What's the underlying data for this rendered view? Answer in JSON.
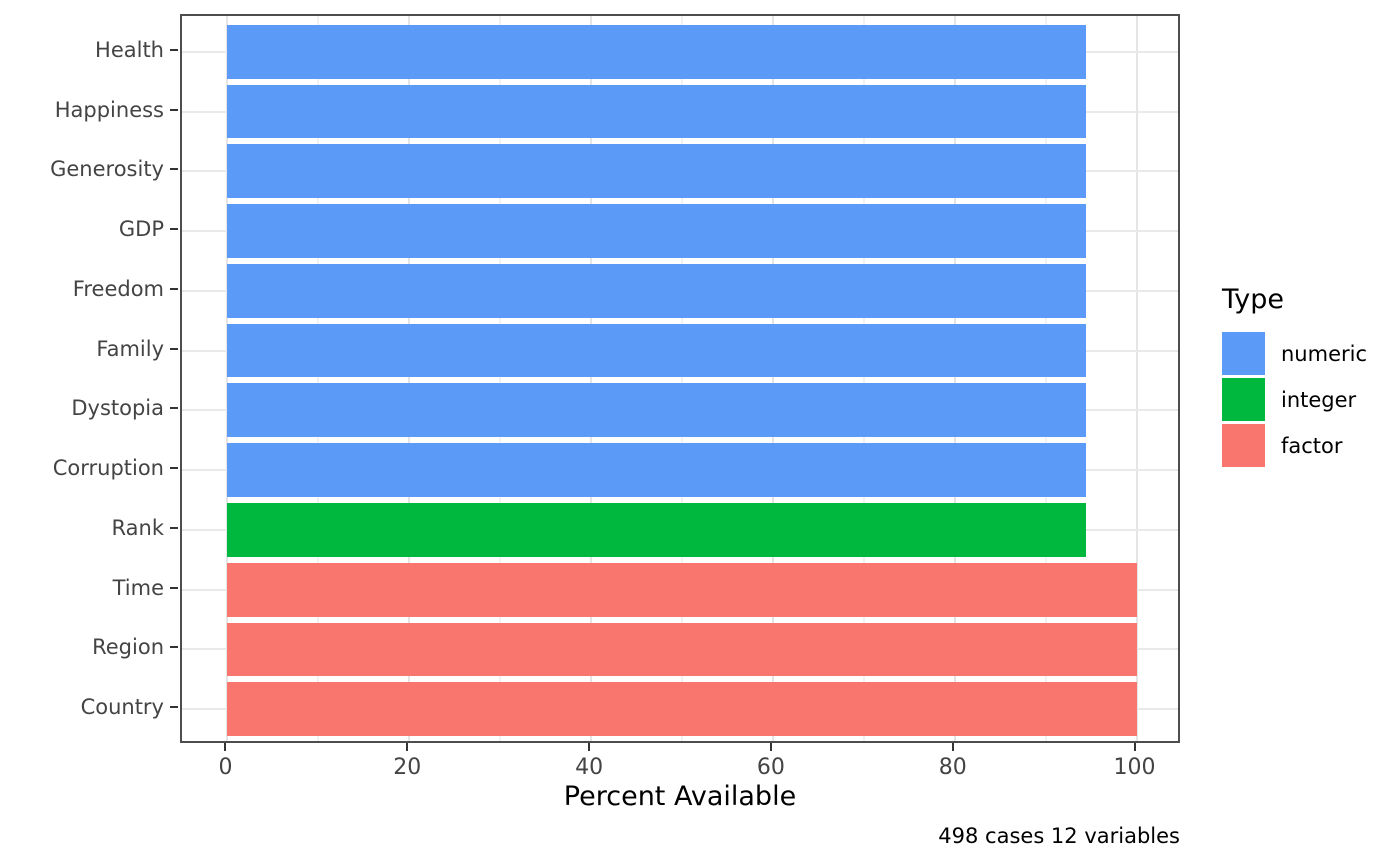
{
  "chart_data": {
    "type": "bar",
    "orientation": "horizontal",
    "title": "",
    "xlabel": "Percent Available",
    "ylabel": "",
    "caption": "498 cases 12 variables",
    "categories": [
      "Health",
      "Happiness",
      "Generosity",
      "GDP",
      "Freedom",
      "Family",
      "Dystopia",
      "Corruption",
      "Rank",
      "Time",
      "Region",
      "Country"
    ],
    "values": [
      94.4,
      94.4,
      94.4,
      94.4,
      94.4,
      94.4,
      94.4,
      94.4,
      94.4,
      100,
      100,
      100
    ],
    "types": [
      "numeric",
      "numeric",
      "numeric",
      "numeric",
      "numeric",
      "numeric",
      "numeric",
      "numeric",
      "integer",
      "factor",
      "factor",
      "factor"
    ],
    "xlim": [
      0,
      100
    ],
    "x_major_ticks": [
      0,
      20,
      40,
      60,
      80,
      100
    ],
    "x_minor_ticks": [
      10,
      30,
      50,
      70,
      90
    ],
    "grid": true,
    "legend": {
      "title": "Type",
      "position": "right",
      "items": [
        {
          "label": "numeric",
          "color": "#5c9af8"
        },
        {
          "label": "integer",
          "color": "#00b83e"
        },
        {
          "label": "factor",
          "color": "#f8766d"
        }
      ]
    },
    "colors": {
      "numeric": "#5c9af8",
      "integer": "#00b83e",
      "factor": "#f8766d",
      "panel_border": "#4d4d4d",
      "grid_major": "#e5e5e5",
      "grid_minor": "#f2f2f2",
      "axis_text": "#444444"
    }
  }
}
